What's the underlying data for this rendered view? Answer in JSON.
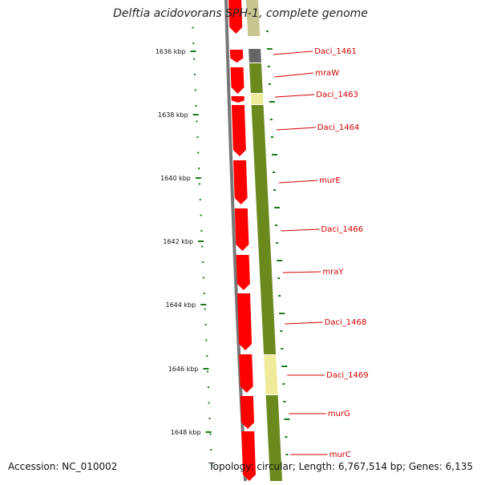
{
  "title": "Delftia acidovorans SPH-1, complete genome",
  "footer": {
    "accession": "Accession: NC_010002",
    "topology": "Topology: circular; Length: 6,767,514 bp; Genes: 6,135"
  },
  "ticks": [
    {
      "label": "1636 kbp"
    },
    {
      "label": "1638 kbp"
    },
    {
      "label": "1640 kbp"
    },
    {
      "label": "1642 kbp"
    },
    {
      "label": "1644 kbp"
    },
    {
      "label": "1646 kbp"
    },
    {
      "label": "1648 kbp"
    }
  ],
  "genes": [
    {
      "name": "Daci_1461"
    },
    {
      "name": "mraW"
    },
    {
      "name": "Daci_1463"
    },
    {
      "name": "Daci_1464"
    },
    {
      "name": "murE"
    },
    {
      "name": "Daci_1466"
    },
    {
      "name": "mraY"
    },
    {
      "name": "Daci_1468"
    },
    {
      "name": "Daci_1469"
    },
    {
      "name": "murG"
    },
    {
      "name": "murC"
    }
  ],
  "colors": {
    "cds_forward": "#ff0000",
    "function_olive": "#6b8a1e",
    "function_pale": "#f0eb9a",
    "function_gray": "#666666",
    "backbone": "#777777",
    "tick_green": "#1a7a1a",
    "label_red": "#d40000"
  }
}
